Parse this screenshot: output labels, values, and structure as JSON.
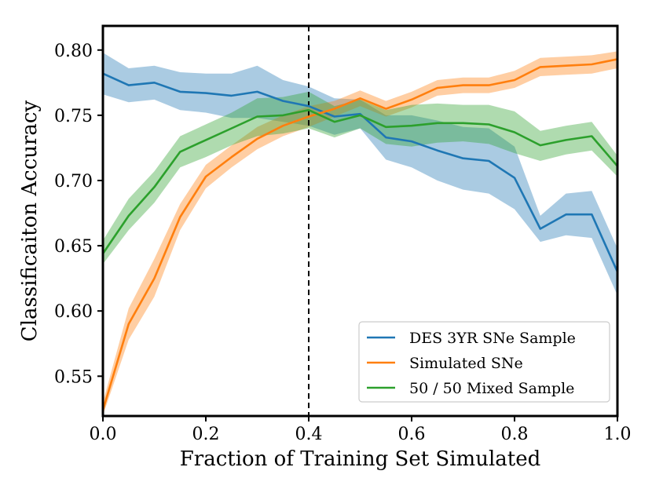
{
  "chart_data": {
    "type": "line",
    "title": "",
    "xlabel": "Fraction of Training Set Simulated",
    "ylabel": "Classificaiton Accuracy",
    "xlim": [
      0.0,
      1.0
    ],
    "ylim": [
      0.5195,
      0.8185
    ],
    "xticks": [
      0.0,
      0.2,
      0.4,
      0.6,
      0.8,
      1.0
    ],
    "xtick_labels": [
      "0.0",
      "0.2",
      "0.4",
      "0.6",
      "0.8",
      "1.0"
    ],
    "yticks": [
      0.55,
      0.6,
      0.65,
      0.7,
      0.75,
      0.8
    ],
    "ytick_labels": [
      "0.55",
      "0.60",
      "0.65",
      "0.70",
      "0.75",
      "0.80"
    ],
    "vline": 0.4,
    "legend_position": "lower-right",
    "x": [
      0.0,
      0.05,
      0.1,
      0.15,
      0.2,
      0.25,
      0.3,
      0.35,
      0.4,
      0.45,
      0.5,
      0.55,
      0.6,
      0.65,
      0.7,
      0.75,
      0.8,
      0.85,
      0.9,
      0.95,
      1.0
    ],
    "series": [
      {
        "name": "DES 3YR SNe Sample",
        "color": "#1f77b4",
        "values": [
          0.782,
          0.773,
          0.775,
          0.768,
          0.767,
          0.765,
          0.768,
          0.761,
          0.757,
          0.749,
          0.751,
          0.733,
          0.73,
          0.723,
          0.717,
          0.715,
          0.702,
          0.663,
          0.674,
          0.674,
          0.63
        ],
        "lower": [
          0.766,
          0.76,
          0.762,
          0.754,
          0.752,
          0.748,
          0.748,
          0.745,
          0.742,
          0.735,
          0.74,
          0.716,
          0.71,
          0.7,
          0.693,
          0.69,
          0.678,
          0.653,
          0.658,
          0.656,
          0.612
        ],
        "upper": [
          0.798,
          0.786,
          0.788,
          0.783,
          0.782,
          0.782,
          0.788,
          0.777,
          0.772,
          0.763,
          0.762,
          0.75,
          0.75,
          0.746,
          0.741,
          0.74,
          0.726,
          0.673,
          0.69,
          0.692,
          0.648
        ]
      },
      {
        "name": "Simulated SNe",
        "color": "#ff7f0e",
        "values": [
          0.524,
          0.59,
          0.625,
          0.672,
          0.703,
          0.718,
          0.732,
          0.742,
          0.749,
          0.755,
          0.763,
          0.755,
          0.762,
          0.771,
          0.773,
          0.773,
          0.777,
          0.787,
          0.788,
          0.789,
          0.793
        ],
        "lower": [
          0.52,
          0.578,
          0.611,
          0.662,
          0.694,
          0.71,
          0.724,
          0.734,
          0.741,
          0.749,
          0.757,
          0.749,
          0.756,
          0.765,
          0.767,
          0.767,
          0.771,
          0.78,
          0.781,
          0.782,
          0.786
        ],
        "upper": [
          0.53,
          0.602,
          0.64,
          0.682,
          0.712,
          0.727,
          0.741,
          0.75,
          0.757,
          0.761,
          0.769,
          0.761,
          0.768,
          0.777,
          0.779,
          0.779,
          0.784,
          0.794,
          0.795,
          0.796,
          0.799
        ]
      },
      {
        "name": "50 / 50 Mixed Sample",
        "color": "#2ca02c",
        "values": [
          0.644,
          0.673,
          0.695,
          0.722,
          0.731,
          0.74,
          0.749,
          0.75,
          0.754,
          0.745,
          0.75,
          0.741,
          0.742,
          0.744,
          0.744,
          0.743,
          0.737,
          0.727,
          0.731,
          0.734,
          0.711
        ],
        "lower": [
          0.636,
          0.662,
          0.683,
          0.71,
          0.718,
          0.727,
          0.734,
          0.736,
          0.74,
          0.733,
          0.74,
          0.728,
          0.726,
          0.729,
          0.73,
          0.728,
          0.721,
          0.715,
          0.72,
          0.723,
          0.703
        ],
        "upper": [
          0.654,
          0.686,
          0.707,
          0.734,
          0.743,
          0.752,
          0.763,
          0.764,
          0.768,
          0.757,
          0.762,
          0.754,
          0.758,
          0.759,
          0.758,
          0.758,
          0.753,
          0.738,
          0.742,
          0.745,
          0.719
        ]
      }
    ]
  }
}
